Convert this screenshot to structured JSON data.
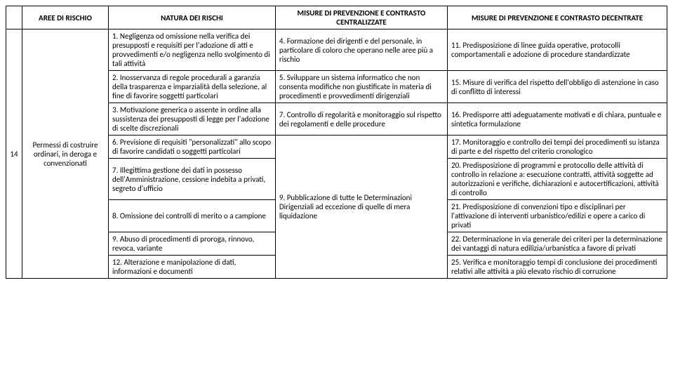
{
  "headers": {
    "aree": "AREE DI RISCHIO",
    "natura": "NATURA DEI RISCHI",
    "central": "MISURE DI PREVENZIONE E CONTRASTO CENTRALIZZATE",
    "decent": "MISURE DI PREVENZIONE E CONTRASTO  DECENTRATE"
  },
  "row": {
    "num": "14",
    "aree": "Permessi di costruire ordinari, in deroga e convenzionati",
    "natura": [
      "1. Negligenza od omissione nella verifica dei presupposti e requisiti per l'adozione di atti e provvedimenti e/o negligenza nello svolgimento di tali attività",
      "2. Inosservanza di regole procedurali a garanzia della trasparenza e imparzialità della selezione, al fine di favorire soggetti particolari",
      "3. Motivazione generica o assente in ordine alla sussistenza dei presupposti di legge per l'adozione di scelte discrezionali",
      "6. Previsione di requisiti \"personalizzati\" allo scopo di favorire candidati o soggetti particolari",
      "7. Illegittima gestione dei dati in possesso dell'Amministrazione, cessione indebita a privati, segreto d'ufficio",
      "8. Omissione dei controlli di merito o a campione",
      "9. Abuso di procedimenti di proroga, rinnovo, revoca, variante",
      "12. Alterazione e manipolazione di dati, informazioni e documenti"
    ],
    "central": [
      "4. Formazione dei dirigenti e del personale, in particolare di coloro che operano nelle aree più a rischio",
      "5. Sviluppare un sistema informatico che non consenta modifiche non giustificate in materia di procedimenti e provvedimenti dirigenziali",
      "7. Controllo di regolarità e monitoraggio sul rispetto dei regolamenti e delle procedure",
      "9. Pubblicazione di tutte le Determinazioni Dirigenziali ad eccezione di quelle di mera liquidazione"
    ],
    "decent": [
      "11. Predisposizione di linee guida operative, protocolli comportamentali e adozione di procedure standardizzate",
      "15. Misure di verifica del rispetto dell'obbligo di astenzione in caso di conflitto di interessi",
      "16. Predisporre atti adeguatamente motivati e di chiara, puntuale e sintetica formulazione",
      "17. Monitoraggio e controllo dei tempi dei procedimenti su istanza di parte e del rispetto del criterio cronologico",
      "20. Predisposizione di programmi e protocollo delle attività di controllo in relazione a: esecuzione contratti, attività soggette ad autorizzazioni e verifiche, dichiarazioni e autocertificazioni, attività di controllo",
      "21. Predisposizione di convenzioni tipo e disciplinari per l'attivazione di interventi urbanistico/edilizi e opere a carico di privati",
      "22. Determinazione in via generale dei criteri per la determinazione dei vantaggi di natura edilizia/urbanistica a favore di privati",
      "25. Verifica e monitoraggio tempi di conclusione dei procedimenti relativi alle attività a più elevato rischio di corruzione"
    ]
  }
}
